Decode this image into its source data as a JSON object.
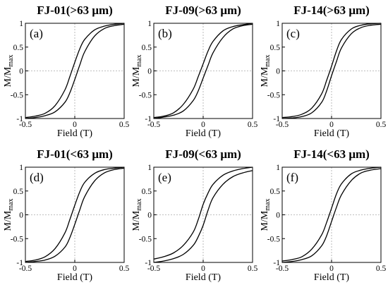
{
  "chart_data": [
    {
      "type": "line",
      "panel_label": "(a)",
      "title": "FJ-01(>63 μm)",
      "xlabel": "Field (T)",
      "ylabel_main": "M/M",
      "ylabel_sub": "max",
      "xlim": [
        -0.5,
        0.5
      ],
      "ylim": [
        -1,
        1
      ],
      "xticks": [
        "-0.5",
        "0",
        "0.5"
      ],
      "yticks": [
        "-1",
        "-0.5",
        "0",
        "0.5",
        "1"
      ],
      "zero_lines": true,
      "series": [
        {
          "x": [
            -0.5,
            -0.4,
            -0.3,
            -0.2,
            -0.1,
            -0.05,
            0,
            0.05,
            0.1,
            0.2,
            0.3,
            0.4,
            0.5
          ],
          "y": [
            -0.98,
            -0.95,
            -0.89,
            -0.73,
            -0.4,
            -0.12,
            0.18,
            0.46,
            0.66,
            0.86,
            0.94,
            0.98,
            1.0
          ]
        },
        {
          "x": [
            -0.5,
            -0.4,
            -0.3,
            -0.2,
            -0.1,
            -0.05,
            0,
            0.05,
            0.1,
            0.2,
            0.3,
            0.4,
            0.5
          ],
          "y": [
            -1.0,
            -0.98,
            -0.94,
            -0.86,
            -0.66,
            -0.46,
            -0.18,
            0.12,
            0.4,
            0.73,
            0.89,
            0.95,
            0.98
          ]
        }
      ]
    },
    {
      "type": "line",
      "panel_label": "(b)",
      "title": "FJ-09(>63 μm)",
      "xlabel": "Field (T)",
      "ylabel_main": "M/M",
      "ylabel_sub": "max",
      "xlim": [
        -0.5,
        0.5
      ],
      "ylim": [
        -1,
        1
      ],
      "xticks": [
        "-0.5",
        "0",
        "0.5"
      ],
      "yticks": [
        "-1",
        "-0.5",
        "0",
        "0.5",
        "1"
      ],
      "zero_lines": true,
      "series": [
        {
          "x": [
            -0.5,
            -0.4,
            -0.3,
            -0.2,
            -0.1,
            -0.05,
            0,
            0.05,
            0.1,
            0.2,
            0.3,
            0.4,
            0.5
          ],
          "y": [
            -0.98,
            -0.95,
            -0.88,
            -0.7,
            -0.38,
            -0.12,
            0.15,
            0.42,
            0.62,
            0.84,
            0.93,
            0.97,
            1.0
          ]
        },
        {
          "x": [
            -0.5,
            -0.4,
            -0.3,
            -0.2,
            -0.1,
            -0.05,
            0,
            0.05,
            0.1,
            0.2,
            0.3,
            0.4,
            0.5
          ],
          "y": [
            -1.0,
            -0.97,
            -0.93,
            -0.84,
            -0.62,
            -0.42,
            -0.15,
            0.12,
            0.38,
            0.7,
            0.88,
            0.95,
            0.98
          ]
        }
      ]
    },
    {
      "type": "line",
      "panel_label": "(c)",
      "title": "FJ-14(>63 μm)",
      "xlabel": "Field (T)",
      "ylabel_main": "M/M",
      "ylabel_sub": "max",
      "xlim": [
        -0.5,
        0.5
      ],
      "ylim": [
        -1,
        1
      ],
      "xticks": [
        "-0.5",
        "0",
        "0.5"
      ],
      "yticks": [
        "-1",
        "-0.5",
        "0",
        "0.5",
        "1"
      ],
      "zero_lines": true,
      "series": [
        {
          "x": [
            -0.5,
            -0.4,
            -0.3,
            -0.2,
            -0.1,
            -0.05,
            0,
            0.05,
            0.1,
            0.2,
            0.3,
            0.4,
            0.5
          ],
          "y": [
            -0.98,
            -0.96,
            -0.91,
            -0.78,
            -0.48,
            -0.2,
            0.1,
            0.42,
            0.66,
            0.88,
            0.96,
            0.99,
            1.0
          ]
        },
        {
          "x": [
            -0.5,
            -0.4,
            -0.3,
            -0.2,
            -0.1,
            -0.05,
            0,
            0.05,
            0.1,
            0.2,
            0.3,
            0.4,
            0.5
          ],
          "y": [
            -1.0,
            -0.99,
            -0.96,
            -0.88,
            -0.66,
            -0.42,
            -0.1,
            0.2,
            0.48,
            0.78,
            0.91,
            0.96,
            0.98
          ]
        }
      ]
    },
    {
      "type": "line",
      "panel_label": "(d)",
      "title": "FJ-01(<63 μm)",
      "xlabel": "Field (T)",
      "ylabel_main": "M/M",
      "ylabel_sub": "max",
      "xlim": [
        -0.5,
        0.5
      ],
      "ylim": [
        -1,
        1
      ],
      "xticks": [
        "-0.5",
        "0",
        "0.5"
      ],
      "yticks": [
        "-1",
        "-0.5",
        "0",
        "0.5",
        "1"
      ],
      "zero_lines": true,
      "series": [
        {
          "x": [
            -0.5,
            -0.4,
            -0.3,
            -0.2,
            -0.1,
            -0.05,
            0,
            0.05,
            0.1,
            0.2,
            0.3,
            0.4,
            0.5
          ],
          "y": [
            -0.98,
            -0.95,
            -0.88,
            -0.71,
            -0.38,
            -0.1,
            0.2,
            0.48,
            0.68,
            0.87,
            0.95,
            0.98,
            1.0
          ]
        },
        {
          "x": [
            -0.5,
            -0.4,
            -0.3,
            -0.2,
            -0.1,
            -0.05,
            0,
            0.05,
            0.1,
            0.2,
            0.3,
            0.4,
            0.5
          ],
          "y": [
            -1.0,
            -0.98,
            -0.95,
            -0.87,
            -0.68,
            -0.48,
            -0.2,
            0.1,
            0.38,
            0.71,
            0.88,
            0.95,
            0.98
          ]
        }
      ]
    },
    {
      "type": "line",
      "panel_label": "(e)",
      "title": "FJ-09(<63 μm)",
      "xlabel": "Field (T)",
      "ylabel_main": "M/M",
      "ylabel_sub": "max",
      "xlim": [
        -0.5,
        0.5
      ],
      "ylim": [
        -1,
        1
      ],
      "xticks": [
        "-0.5",
        "0",
        "0.5"
      ],
      "yticks": [
        "-1",
        "-0.5",
        "0",
        "0.5",
        "1"
      ],
      "zero_lines": true,
      "series": [
        {
          "x": [
            -0.5,
            -0.4,
            -0.3,
            -0.2,
            -0.1,
            -0.05,
            0,
            0.05,
            0.1,
            0.2,
            0.3,
            0.4,
            0.5
          ],
          "y": [
            -0.93,
            -0.88,
            -0.8,
            -0.64,
            -0.36,
            -0.1,
            0.22,
            0.46,
            0.64,
            0.83,
            0.92,
            0.97,
            1.0
          ]
        },
        {
          "x": [
            -0.5,
            -0.4,
            -0.3,
            -0.2,
            -0.1,
            -0.05,
            0,
            0.05,
            0.1,
            0.2,
            0.3,
            0.4,
            0.5
          ],
          "y": [
            -1.0,
            -0.97,
            -0.92,
            -0.83,
            -0.64,
            -0.46,
            -0.22,
            0.1,
            0.36,
            0.64,
            0.8,
            0.88,
            0.93
          ]
        }
      ]
    },
    {
      "type": "line",
      "panel_label": "(f)",
      "title": "FJ-14(<63 μm)",
      "xlabel": "Field (T)",
      "ylabel_main": "M/M",
      "ylabel_sub": "max",
      "xlim": [
        -0.5,
        0.5
      ],
      "ylim": [
        -1,
        1
      ],
      "xticks": [
        "-0.5",
        "0",
        "0.5"
      ],
      "yticks": [
        "-1",
        "-0.5",
        "0",
        "0.5",
        "1"
      ],
      "zero_lines": true,
      "series": [
        {
          "x": [
            -0.5,
            -0.4,
            -0.3,
            -0.2,
            -0.1,
            -0.05,
            0,
            0.05,
            0.1,
            0.2,
            0.3,
            0.4,
            0.5
          ],
          "y": [
            -0.97,
            -0.94,
            -0.88,
            -0.72,
            -0.42,
            -0.16,
            0.14,
            0.44,
            0.65,
            0.86,
            0.94,
            0.98,
            1.0
          ]
        },
        {
          "x": [
            -0.5,
            -0.4,
            -0.3,
            -0.2,
            -0.1,
            -0.05,
            0,
            0.05,
            0.1,
            0.2,
            0.3,
            0.4,
            0.5
          ],
          "y": [
            -1.0,
            -0.98,
            -0.94,
            -0.86,
            -0.65,
            -0.44,
            -0.14,
            0.16,
            0.42,
            0.72,
            0.88,
            0.94,
            0.97
          ]
        }
      ]
    }
  ]
}
